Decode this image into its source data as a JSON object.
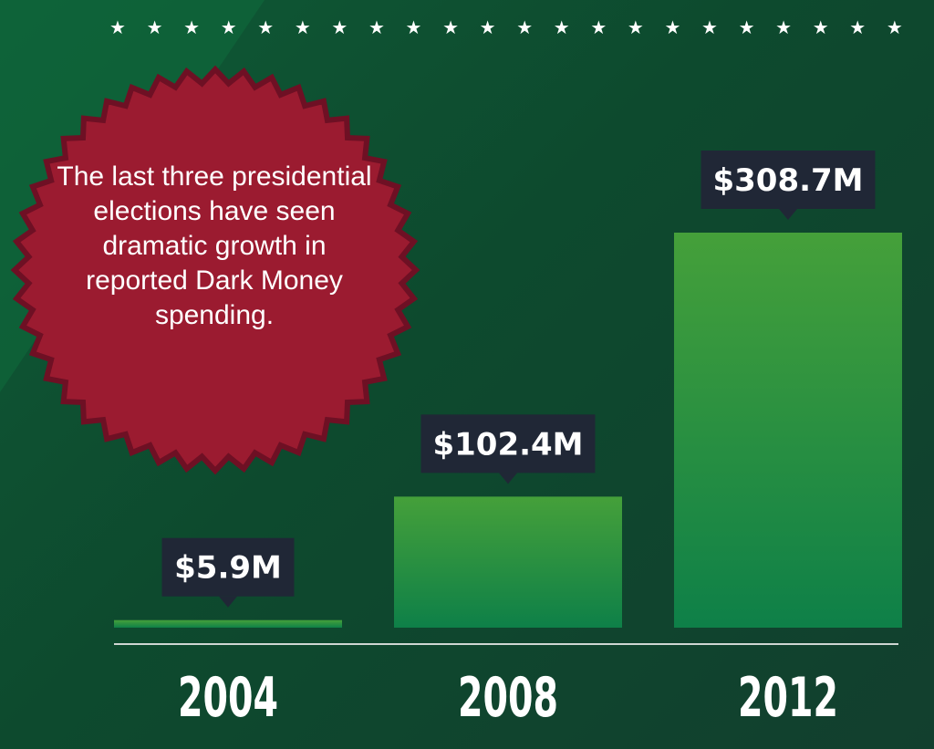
{
  "header": {
    "star_count": 22,
    "star_glyph": "★"
  },
  "callout": {
    "text": "The last three presidential elections have seen dramatic growth in reported Dark Money spending.",
    "badge_color": "#9b1b30"
  },
  "chart_data": {
    "type": "bar",
    "categories": [
      "2004",
      "2008",
      "2012"
    ],
    "values": [
      5.9,
      102.4,
      308.7
    ],
    "value_labels": [
      "$5.9M",
      "$102.4M",
      "$308.7M"
    ],
    "title": "",
    "xlabel": "",
    "ylabel": "",
    "ylim": [
      0,
      308.7
    ],
    "grid": false,
    "colors": {
      "bar_top": "#45a03a",
      "bar_bottom": "#0e8048",
      "label_box": "#202736",
      "axis": "#cfd6d2"
    }
  }
}
